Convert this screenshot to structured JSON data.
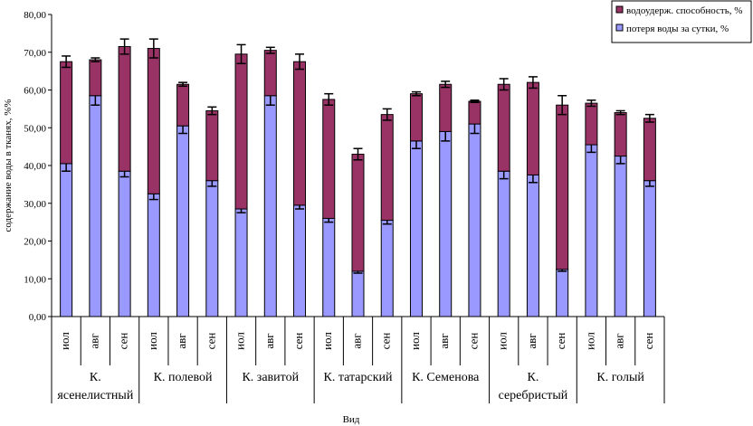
{
  "chart_data": {
    "type": "bar",
    "stacked": true,
    "xlabel": "Вид",
    "ylabel": "содержание воды в тканях, %%",
    "ylim": [
      0,
      80
    ],
    "yticks": [
      "0,00",
      "10,00",
      "20,00",
      "30,00",
      "40,00",
      "50,00",
      "60,00",
      "70,00",
      "80,00"
    ],
    "grid": false,
    "legend_position": "top-right",
    "groups": [
      {
        "name": "К. ясенелистный",
        "lines": [
          "К.",
          "ясенелистный"
        ]
      },
      {
        "name": "К. полевой",
        "lines": [
          "К. полевой"
        ]
      },
      {
        "name": "К. завитой",
        "lines": [
          "К. завитой"
        ]
      },
      {
        "name": "К. татарский",
        "lines": [
          "К. татарский"
        ]
      },
      {
        "name": "К. Семенова",
        "lines": [
          "К. Семенова"
        ]
      },
      {
        "name": "К. серебристый",
        "lines": [
          "К.",
          "серебристый"
        ]
      },
      {
        "name": "К. голый",
        "lines": [
          "К. голый"
        ]
      }
    ],
    "categories": [
      "иол",
      "авг",
      "сен",
      "иол",
      "авг",
      "сен",
      "иол",
      "авг",
      "сен",
      "иол",
      "авг",
      "сен",
      "иол",
      "авг",
      "сен",
      "иол",
      "авг",
      "сен",
      "иол",
      "авг",
      "сен"
    ],
    "series": [
      {
        "name": "потеря воды за сутки, %",
        "color": "#9999ff",
        "values": [
          40.5,
          58.5,
          38.5,
          32.5,
          50.5,
          36,
          28.5,
          58.5,
          29.5,
          26,
          12,
          25.5,
          46.5,
          49,
          51,
          38.5,
          37.5,
          12.5,
          45.5,
          42.5,
          36
        ],
        "error": [
          2,
          2.5,
          1.5,
          1.5,
          2,
          1.5,
          1,
          2.5,
          1,
          1,
          0.5,
          1,
          2,
          2.5,
          2.5,
          2,
          2,
          0.5,
          2,
          2,
          1.5
        ]
      },
      {
        "name": "водоудерж. способность, %",
        "color": "#993366",
        "values": [
          27,
          9.5,
          33,
          38.5,
          11,
          18.5,
          41,
          12,
          38,
          31.5,
          31,
          28,
          12.5,
          12.5,
          6,
          23,
          24.5,
          43.5,
          11,
          11.5,
          16.5
        ],
        "error": [
          1.5,
          0.5,
          2,
          2.5,
          0.5,
          1,
          2.5,
          0.8,
          2,
          1.5,
          1.5,
          1.5,
          0.5,
          0.8,
          0.3,
          1.5,
          1.5,
          2.5,
          0.8,
          0.5,
          1
        ]
      }
    ]
  }
}
